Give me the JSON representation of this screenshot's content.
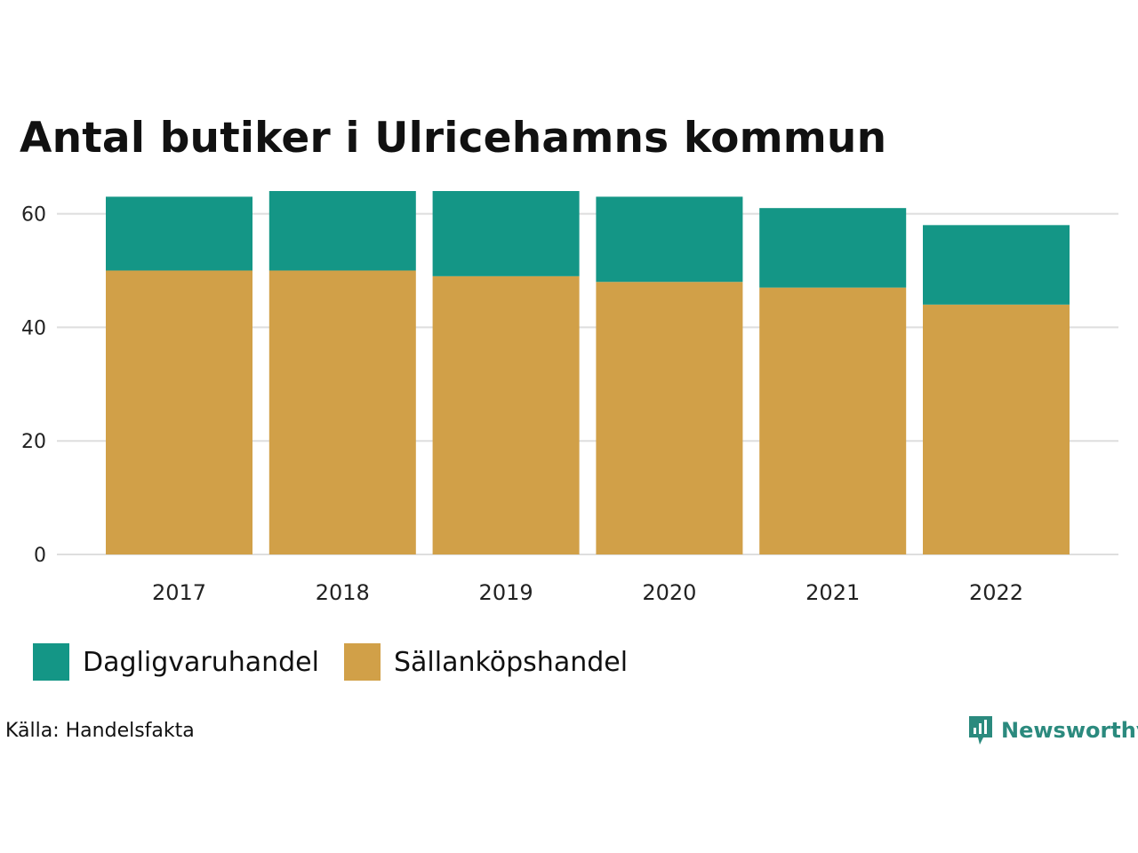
{
  "chart_data": {
    "type": "bar",
    "stacked": true,
    "title": "Antal butiker i Ulricehamns kommun",
    "categories": [
      "2017",
      "2018",
      "2019",
      "2020",
      "2021",
      "2022"
    ],
    "series": [
      {
        "name": "Sällanköpshandel",
        "values": [
          50,
          50,
          49,
          48,
          47,
          44
        ],
        "color": "#d1a048"
      },
      {
        "name": "Dagligvaruhandel",
        "values": [
          13,
          14,
          15,
          15,
          14,
          14
        ],
        "color": "#149686"
      }
    ],
    "yticks": [
      0,
      20,
      40,
      60
    ],
    "ylim": [
      0,
      64
    ],
    "xlabel": "",
    "ylabel": "",
    "grid": true,
    "legend_position": "bottom-left"
  },
  "legend": [
    {
      "label": "Dagligvaruhandel",
      "color": "#149686"
    },
    {
      "label": "Sällanköpshandel",
      "color": "#d1a048"
    }
  ],
  "source": "Källa: Handelsfakta",
  "brand": {
    "name": "Newsworthy",
    "color": "#2b8a7e",
    "icon": "newsworthy-logo-icon"
  }
}
